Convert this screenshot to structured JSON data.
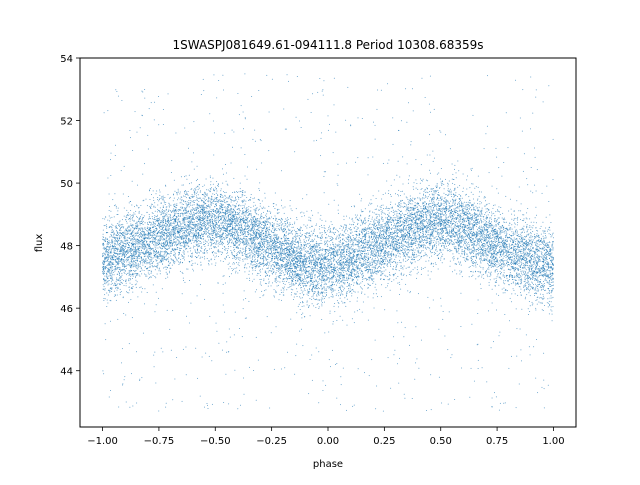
{
  "chart_data": {
    "type": "scatter",
    "title": "1SWASPJ081649.61-094111.8 Period 10308.68359s",
    "xlabel": "phase",
    "ylabel": "flux",
    "xlim": [
      -1.1,
      1.1
    ],
    "ylim": [
      42.2,
      54.0
    ],
    "xticks": [
      {
        "value": -1.0,
        "label": "−1.00"
      },
      {
        "value": -0.75,
        "label": "−0.75"
      },
      {
        "value": -0.5,
        "label": "−0.50"
      },
      {
        "value": -0.25,
        "label": "−0.25"
      },
      {
        "value": 0.0,
        "label": "0.00"
      },
      {
        "value": 0.25,
        "label": "0.25"
      },
      {
        "value": 0.5,
        "label": "0.50"
      },
      {
        "value": 0.75,
        "label": "0.75"
      },
      {
        "value": 1.0,
        "label": "1.00"
      }
    ],
    "yticks": [
      {
        "value": 44,
        "label": "44"
      },
      {
        "value": 46,
        "label": "46"
      },
      {
        "value": 48,
        "label": "48"
      },
      {
        "value": 50,
        "label": "50"
      },
      {
        "value": 52,
        "label": "52"
      },
      {
        "value": 54,
        "label": "54"
      }
    ],
    "series_color": "#1f77b4",
    "grid": false,
    "phase_range": [
      -1.0,
      1.0
    ],
    "binned_trend": {
      "phase": [
        -1.0,
        -0.9,
        -0.8,
        -0.7,
        -0.6,
        -0.5,
        -0.4,
        -0.3,
        -0.2,
        -0.1,
        0.0,
        0.1,
        0.2,
        0.3,
        0.4,
        0.5,
        0.6,
        0.7,
        0.8,
        0.9,
        1.0
      ],
      "flux": [
        47.5,
        47.8,
        48.1,
        48.4,
        48.7,
        48.8,
        48.6,
        48.2,
        47.7,
        47.4,
        47.4,
        47.6,
        47.9,
        48.3,
        48.6,
        48.8,
        48.6,
        48.2,
        47.8,
        47.5,
        47.4
      ]
    },
    "scatter_spread": 0.6,
    "outlier_range": [
      42.7,
      53.5
    ],
    "n_points_dense": 14000,
    "n_points_outliers": 700
  }
}
